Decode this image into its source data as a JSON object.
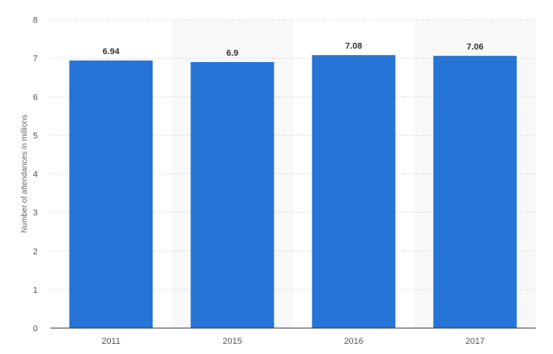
{
  "chart_data": {
    "type": "bar",
    "categories": [
      "2011",
      "2015",
      "2016",
      "2017"
    ],
    "values": [
      6.94,
      6.9,
      7.08,
      7.06
    ],
    "value_labels": [
      "6.94",
      "6.9",
      "7.08",
      "7.06"
    ],
    "xlabel": "",
    "ylabel": "Number of attendances in millions",
    "ylim": [
      0,
      8
    ],
    "yticks": [
      "0",
      "1",
      "2",
      "3",
      "4",
      "5",
      "6",
      "7",
      "8"
    ],
    "grid": true,
    "bar_color": "#2675d6",
    "band_color": "#f8f8f8",
    "grid_color": "#cccccc"
  }
}
